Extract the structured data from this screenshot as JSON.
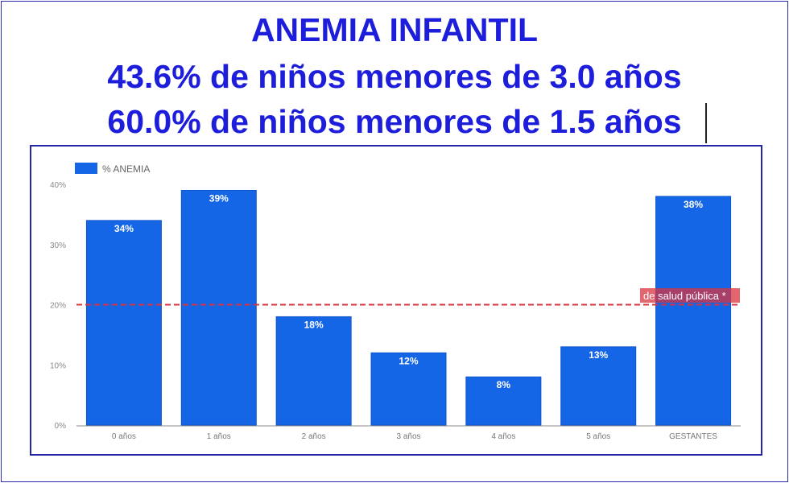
{
  "title_lines": [
    "ANEMIA INFANTIL",
    "43.6% de niños menores de 3.0 años",
    "60.0% de niños menores de 1.5 años"
  ],
  "chart_data": {
    "type": "bar",
    "categories": [
      "0 años",
      "1 años",
      "2 años",
      "3 años",
      "4 años",
      "5 años",
      "GESTANTES"
    ],
    "series": [
      {
        "name": "% ANEMIA",
        "values": [
          34,
          39,
          18,
          12,
          8,
          13,
          38
        ],
        "labels": [
          "34%",
          "39%",
          "18%",
          "12%",
          "8%",
          "13%",
          "38%"
        ]
      }
    ],
    "ylim": [
      0,
      40
    ],
    "yticks": [
      0,
      10,
      20,
      30,
      40
    ],
    "ytick_labels": [
      "0%",
      "10%",
      "20%",
      "30%",
      "40%"
    ],
    "legend": "top-left",
    "grid": false,
    "reference_line": {
      "value": 20,
      "label": "de salud pública *",
      "color": "#d9333f",
      "style": "dashed"
    },
    "bar_color": "#1466e6"
  }
}
